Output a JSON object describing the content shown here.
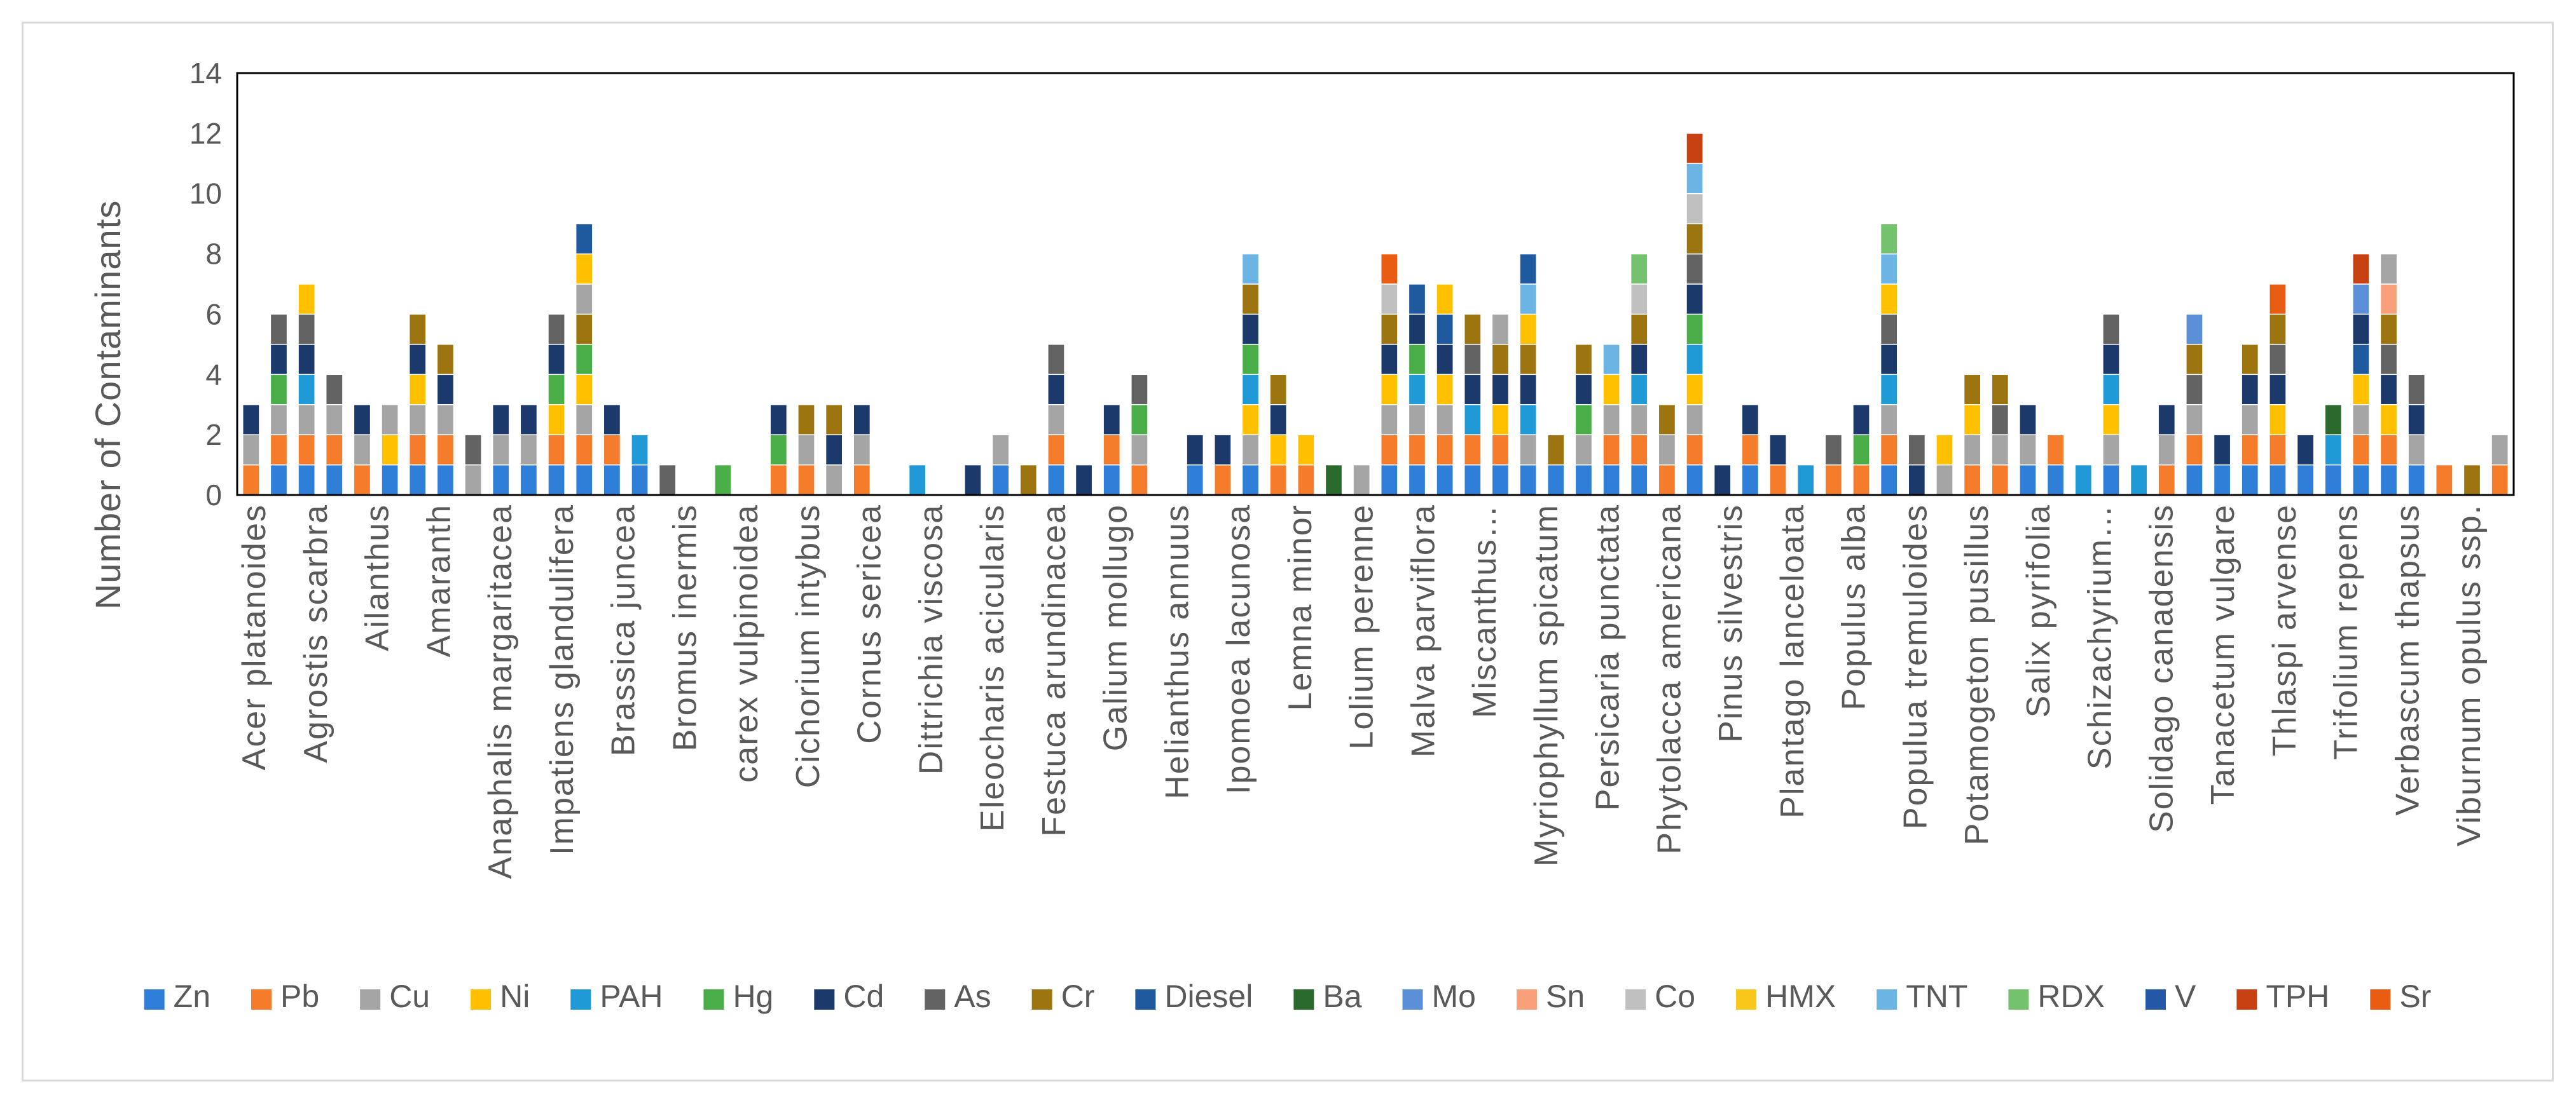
{
  "chart_data": {
    "type": "bar",
    "stacked": true,
    "title": "",
    "xlabel": "",
    "ylabel": "Number of Contaminants",
    "ylim": [
      0,
      14
    ],
    "yticks": [
      0,
      2,
      4,
      6,
      8,
      10,
      12,
      14
    ],
    "gridlines": false,
    "legend_position": "bottom",
    "contaminants": [
      "Zn",
      "Pb",
      "Cu",
      "Ni",
      "PAH",
      "Hg",
      "Cd",
      "As",
      "Cr",
      "Diesel",
      "Ba",
      "Mo",
      "Sn",
      "Co",
      "HMX",
      "TNT",
      "RDX",
      "V",
      "TPH",
      "Sr"
    ],
    "colors": {
      "Zn": "#2f7ed8",
      "Pb": "#f47c2a",
      "Cu": "#a5a5a5",
      "Ni": "#ffc000",
      "PAH": "#1f9ad6",
      "Hg": "#4aae48",
      "Cd": "#1b3a6b",
      "As": "#636363",
      "Cr": "#9c7410",
      "Diesel": "#1f5a9e",
      "Ba": "#2b6a2d",
      "Mo": "#5b8fd8",
      "Sn": "#f8a07a",
      "Co": "#c0c0c0",
      "HMX": "#f7c81a",
      "TNT": "#6cb4e4",
      "RDX": "#74c26e",
      "V": "#2458a6",
      "TPH": "#c84112",
      "Sr": "#e85d12"
    },
    "labeled_categories": [
      "Acer platanoides",
      "Agrostis scarbra",
      "Ailanthus",
      "Amaranth",
      "Anaphalis margaritacea",
      "Impatiens glandulifera",
      "Brassica juncea",
      "Bromus inermis",
      "carex vulpinoidea",
      "Cichorium intybus",
      "Cornus sericea",
      "Dittrichia viscosa",
      "Eleocharis acicularis",
      "Festuca arundinacea",
      "Galium mollugo",
      "Helianthus annuus",
      "Ipomoea lacunosa",
      "Lemna minor",
      "Lolium perenne",
      "Malva parviflora",
      "Miscanthus…",
      "Myriophyllum spicatum",
      "Persicaria punctata",
      "Phytolacca americana",
      "Pinus silvestris",
      "Plantago lanceloata",
      "Populus alba",
      "Populua tremuloides",
      "Potamogeton pusillus",
      "Salix pyrifolia",
      "Schizachyrium…",
      "Solidago canadensis",
      "Tanacetum vulgare",
      "Thlaspi arvense",
      "Trifolium repens",
      "Verbascum thapsus",
      "Viburnum opulus ssp."
    ],
    "bars": [
      [
        "Pb",
        "Cu",
        "Cd"
      ],
      [
        "Zn",
        "Pb",
        "Cu",
        "Hg",
        "Cd",
        "As"
      ],
      [
        "Zn",
        "Pb",
        "Cu",
        "PAH",
        "Cd",
        "As",
        "Ni"
      ],
      [
        "Zn",
        "Pb",
        "Cu",
        "As"
      ],
      [
        "Pb",
        "Cu",
        "Cd"
      ],
      [
        "Zn",
        "Ni",
        "Cu"
      ],
      [
        "Zn",
        "Pb",
        "Cu",
        "Ni",
        "Cd",
        "Cr"
      ],
      [
        "Zn",
        "Pb",
        "Cu",
        "Cd",
        "Cr"
      ],
      [
        "Cu",
        "As"
      ],
      [
        "Zn",
        "Cu",
        "Cd"
      ],
      [
        "Zn",
        "Cu",
        "Cd"
      ],
      [
        "Zn",
        "Pb",
        "Ni",
        "Hg",
        "Cd",
        "As"
      ],
      [
        "Zn",
        "Pb",
        "Cu",
        "Ni",
        "Hg",
        "Cr",
        "Cu",
        "Ni",
        "Diesel"
      ],
      [
        "Zn",
        "Pb",
        "Cd"
      ],
      [
        "Zn",
        "PAH"
      ],
      [
        "As"
      ],
      [],
      [
        "Hg"
      ],
      [],
      [
        "Pb",
        "Hg",
        "Cd"
      ],
      [
        "Pb",
        "Cu",
        "Cr"
      ],
      [
        "Cu",
        "Cd",
        "Cr"
      ],
      [
        "Pb",
        "Cu",
        "Cd"
      ],
      [],
      [
        "PAH"
      ],
      [],
      [
        "Cd"
      ],
      [
        "Zn",
        "Cu"
      ],
      [
        "Cr"
      ],
      [
        "Zn",
        "Pb",
        "Cu",
        "Cd",
        "As"
      ],
      [
        "Cd"
      ],
      [
        "Zn",
        "Pb",
        "Cd"
      ],
      [
        "Pb",
        "Cu",
        "Hg",
        "As"
      ],
      [],
      [
        "Zn",
        "Cd"
      ],
      [
        "Pb",
        "Cd"
      ],
      [
        "Zn",
        "Cu",
        "Ni",
        "PAH",
        "Hg",
        "Cd",
        "Cr",
        "TNT"
      ],
      [
        "Pb",
        "Ni",
        "Cd",
        "Cr"
      ],
      [
        "Pb",
        "Ni"
      ],
      [
        "Ba"
      ],
      [
        "Cu"
      ],
      [
        "Zn",
        "Pb",
        "Cu",
        "Ni",
        "Cd",
        "Cr",
        "Co",
        "Sr"
      ],
      [
        "Zn",
        "Pb",
        "Cu",
        "PAH",
        "Hg",
        "Cd",
        "Diesel"
      ],
      [
        "Zn",
        "Pb",
        "Cu",
        "Ni",
        "Cd",
        "Diesel",
        "Ni"
      ],
      [
        "Zn",
        "Pb",
        "PAH",
        "Cd",
        "As",
        "Cr"
      ],
      [
        "Zn",
        "Pb",
        "Ni",
        "Cd",
        "Cr",
        "Cu"
      ],
      [
        "Zn",
        "Cu",
        "PAH",
        "Cd",
        "Cr",
        "Ni",
        "TNT",
        "Diesel"
      ],
      [
        "Zn",
        "Cr"
      ],
      [
        "Zn",
        "Cu",
        "Hg",
        "Cd",
        "Cr"
      ],
      [
        "Zn",
        "Pb",
        "Cu",
        "Ni",
        "TNT"
      ],
      [
        "Zn",
        "Pb",
        "Cu",
        "PAH",
        "Cd",
        "Cr",
        "Co",
        "RDX"
      ],
      [
        "Pb",
        "Cu",
        "Cr"
      ],
      [
        "Zn",
        "Pb",
        "Cu",
        "Ni",
        "PAH",
        "Hg",
        "Cd",
        "As",
        "Cr",
        "Co",
        "TNT",
        "TPH"
      ],
      [
        "Cd"
      ],
      [
        "Zn",
        "Pb",
        "Cd"
      ],
      [
        "Pb",
        "Cd"
      ],
      [
        "PAH"
      ],
      [
        "Pb",
        "As"
      ],
      [
        "Pb",
        "Hg",
        "Cd"
      ],
      [
        "Zn",
        "Pb",
        "Cu",
        "PAH",
        "Cd",
        "As",
        "Ni",
        "TNT",
        "RDX"
      ],
      [
        "Cd",
        "As"
      ],
      [
        "Cu",
        "Ni"
      ],
      [
        "Pb",
        "Cu",
        "Ni",
        "Cr"
      ],
      [
        "Pb",
        "Cu",
        "As",
        "Cr"
      ],
      [
        "Zn",
        "Cu",
        "Cd"
      ],
      [
        "Zn",
        "Pb"
      ],
      [
        "PAH"
      ],
      [
        "Zn",
        "Cu",
        "Ni",
        "PAH",
        "Cd",
        "As"
      ],
      [
        "PAH"
      ],
      [
        "Pb",
        "Cu",
        "Cd"
      ],
      [
        "Zn",
        "Pb",
        "Cu",
        "As",
        "Cr",
        "Mo"
      ],
      [
        "Zn",
        "Cd"
      ],
      [
        "Zn",
        "Pb",
        "Cu",
        "Cd",
        "Cr"
      ],
      [
        "Zn",
        "Pb",
        "Ni",
        "Cd",
        "As",
        "Cr",
        "Sr"
      ],
      [
        "Zn",
        "Cd"
      ],
      [
        "Zn",
        "PAH",
        "Ba"
      ],
      [
        "Zn",
        "Pb",
        "Cu",
        "Ni",
        "Diesel",
        "Cd",
        "Mo",
        "TPH"
      ],
      [
        "Zn",
        "Pb",
        "Ni",
        "Cd",
        "As",
        "Cr",
        "Sn",
        "Cu"
      ],
      [
        "Zn",
        "Cu",
        "Cd",
        "As"
      ],
      [
        "Pb"
      ],
      [
        "Cr"
      ],
      [
        "Pb",
        "Cu"
      ]
    ]
  }
}
